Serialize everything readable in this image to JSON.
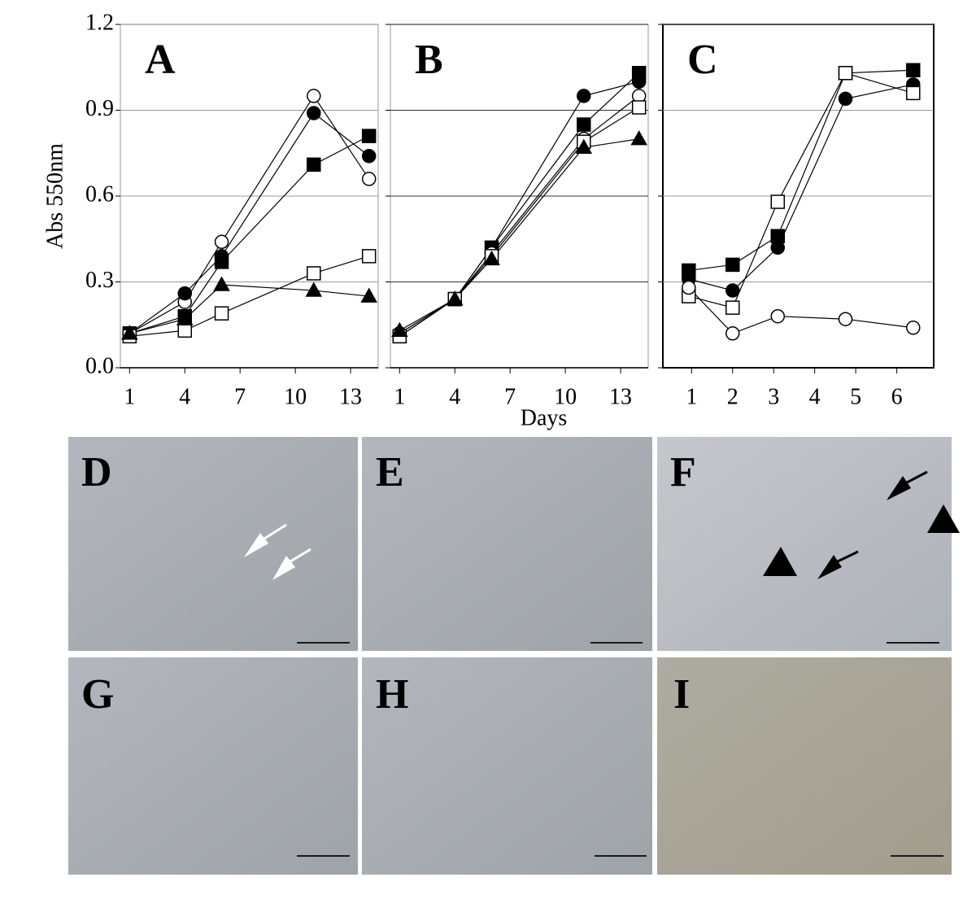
{
  "chart_data": [
    {
      "type": "line",
      "title": "A",
      "ylabel": "Abs 550nm",
      "x": [
        1,
        4,
        6,
        11,
        14
      ],
      "xlim": [
        0.5,
        14.5
      ],
      "xticks": [
        1,
        4,
        7,
        10,
        13
      ],
      "ylim": [
        0,
        1.2
      ],
      "yticks": [
        {
          "value": 0,
          "label": "0.0"
        },
        0.3,
        0.6,
        0.9,
        1.2
      ],
      "ytick_labels": true,
      "grid": true,
      "series": [
        {
          "marker": "open-circle",
          "color": "#000000",
          "values": [
            0.12,
            0.23,
            0.44,
            0.95,
            0.66
          ]
        },
        {
          "marker": "filled-circle",
          "color": "#000000",
          "values": [
            0.12,
            0.26,
            0.39,
            0.89,
            0.74
          ]
        },
        {
          "marker": "filled-square",
          "color": "#000000",
          "values": [
            0.12,
            0.18,
            0.37,
            0.71,
            0.81
          ]
        },
        {
          "marker": "open-square",
          "color": "#000000",
          "values": [
            0.11,
            0.13,
            0.19,
            0.33,
            0.39
          ]
        },
        {
          "marker": "filled-triangle",
          "color": "#000000",
          "values": [
            0.12,
            0.17,
            0.29,
            0.27,
            0.25
          ]
        }
      ]
    },
    {
      "type": "line",
      "title": "B",
      "xlabel": "Days",
      "x": [
        1,
        4,
        6,
        11,
        14
      ],
      "xlim": [
        0.5,
        14.5
      ],
      "xticks": [
        1,
        4,
        7,
        10,
        13
      ],
      "ylim": [
        0,
        1.2
      ],
      "yticks": [
        0,
        0.3,
        0.6,
        0.9,
        1.2
      ],
      "ytick_labels": false,
      "grid": true,
      "series": [
        {
          "marker": "filled-circle",
          "color": "#000000",
          "values": [
            0.12,
            0.24,
            0.42,
            0.95,
            1.0
          ]
        },
        {
          "marker": "filled-square",
          "color": "#000000",
          "values": [
            0.11,
            0.24,
            0.42,
            0.85,
            1.03
          ]
        },
        {
          "marker": "open-circle",
          "color": "#000000",
          "values": [
            0.12,
            0.24,
            0.4,
            0.8,
            0.95
          ]
        },
        {
          "marker": "open-square",
          "color": "#000000",
          "values": [
            0.11,
            0.24,
            0.39,
            0.79,
            0.91
          ]
        },
        {
          "marker": "filled-triangle",
          "color": "#000000",
          "values": [
            0.13,
            0.24,
            0.38,
            0.77,
            0.8
          ]
        }
      ]
    },
    {
      "type": "line",
      "title": "C",
      "x": [
        0.93,
        2,
        3.1,
        4.75,
        6.4
      ],
      "xlim": [
        0.3,
        6.9
      ],
      "xticks": [
        1,
        2,
        3,
        4,
        5,
        6
      ],
      "ylim": [
        0,
        1.2
      ],
      "yticks": [
        0,
        0.3,
        0.6,
        0.9,
        1.2
      ],
      "ytick_labels": false,
      "grid": true,
      "series": [
        {
          "marker": "filled-square",
          "color": "#000000",
          "values": [
            0.34,
            0.36,
            0.46,
            1.03,
            1.04
          ]
        },
        {
          "marker": "filled-circle",
          "color": "#000000",
          "values": [
            0.31,
            0.27,
            0.42,
            0.94,
            0.99
          ]
        },
        {
          "marker": "open-square",
          "color": "#000000",
          "values": [
            0.25,
            0.21,
            0.58,
            1.03,
            0.96
          ]
        },
        {
          "marker": "open-circle",
          "color": "#000000",
          "values": [
            0.28,
            0.12,
            0.18,
            0.17,
            0.14
          ]
        }
      ]
    }
  ],
  "panels": [
    "D",
    "E",
    "F",
    "G",
    "H",
    "I"
  ]
}
